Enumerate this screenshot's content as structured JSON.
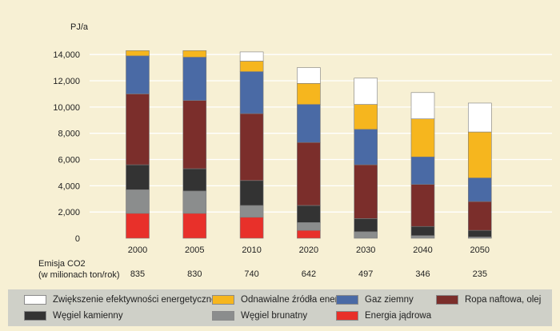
{
  "chart_data": {
    "type": "bar",
    "stacked": true,
    "title": "",
    "ylabel": "PJ/a",
    "xlabel": "",
    "ylim": [
      0,
      14500
    ],
    "y_ticks": [
      0,
      2000,
      4000,
      6000,
      8000,
      10000,
      12000,
      14000
    ],
    "y_tick_labels": [
      "0",
      "2,000",
      "4,000",
      "6,000",
      "8,000",
      "10,000",
      "12,000",
      "14,000"
    ],
    "grid": true,
    "categories": [
      "2000",
      "2005",
      "2010",
      "2020",
      "2030",
      "2040",
      "2050"
    ],
    "series": [
      {
        "name": "Energia jądrowa",
        "key": "nuclear",
        "color": "#e8302a",
        "values": [
          1900,
          1900,
          1600,
          600,
          0,
          0,
          0
        ]
      },
      {
        "name": "Węgiel brunatny",
        "key": "lignite",
        "color": "#8b8d8d",
        "values": [
          1800,
          1700,
          900,
          600,
          500,
          200,
          100
        ]
      },
      {
        "name": "Węgiel kamienny",
        "key": "hard_coal",
        "color": "#333333",
        "values": [
          1900,
          1700,
          1900,
          1300,
          1000,
          700,
          500
        ]
      },
      {
        "name": "Ropa naftowa, olej",
        "key": "oil",
        "color": "#7b2e2b",
        "values": [
          5400,
          5200,
          5100,
          4800,
          4100,
          3200,
          2200
        ]
      },
      {
        "name": "Gaz ziemny",
        "key": "gas",
        "color": "#4a6aa5",
        "values": [
          2900,
          3300,
          3200,
          2900,
          2700,
          2100,
          1800
        ]
      },
      {
        "name": "Odnawialne źródła energii",
        "key": "renewables",
        "color": "#f6b61e",
        "values": [
          400,
          500,
          800,
          1600,
          1900,
          2900,
          3500
        ]
      },
      {
        "name": "Zwiększenie efektywności energetycznej",
        "key": "efficiency",
        "color": "#ffffff",
        "values": [
          0,
          0,
          700,
          1200,
          2000,
          2000,
          2200
        ]
      }
    ],
    "emissions": {
      "label_line1": "Emisja CO2",
      "label_line2": "(w milionach ton/rok)",
      "values": [
        "835",
        "830",
        "740",
        "642",
        "497",
        "346",
        "235"
      ]
    }
  },
  "legend_order": [
    "efficiency",
    "renewables",
    "gas",
    "oil",
    "hard_coal",
    "lignite",
    "nuclear"
  ]
}
